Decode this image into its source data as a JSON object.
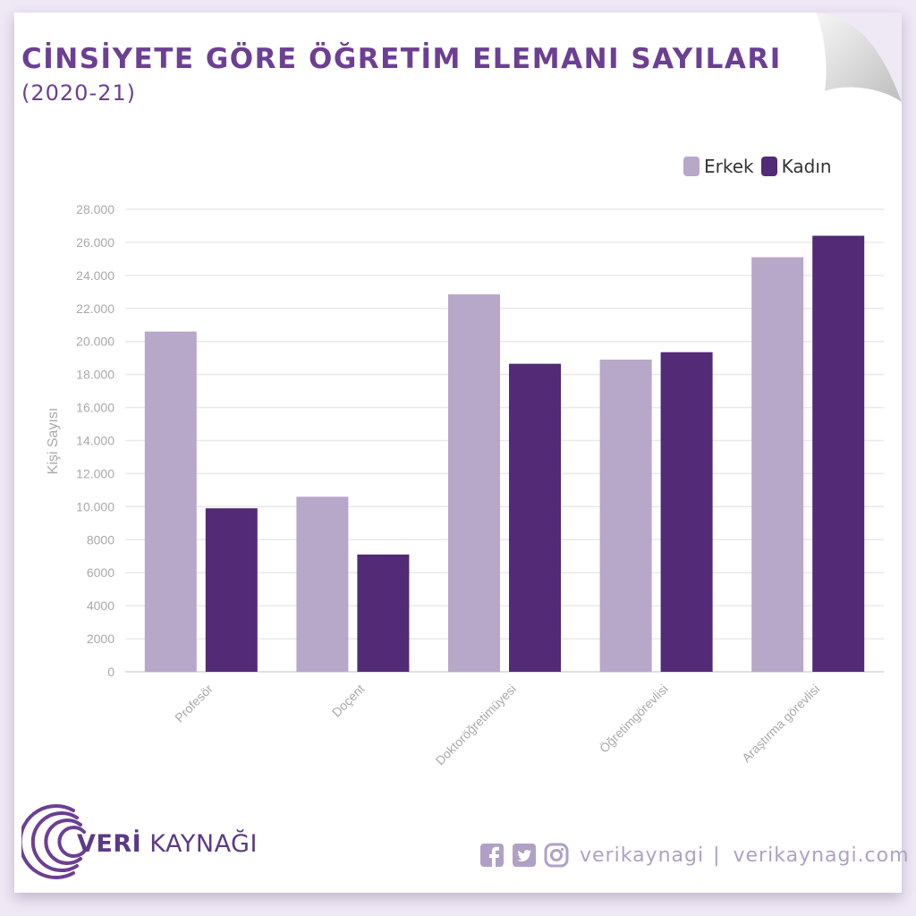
{
  "header": {
    "title": "CİNSİYETE GÖRE ÖĞRETİM ELEMANI SAYILARI",
    "subtitle": "(2020-21)"
  },
  "chart_data": {
    "type": "bar",
    "title": "CİNSİYETE GÖRE ÖĞRETİM ELEMANI SAYILARI",
    "subtitle": "(2020-21)",
    "xlabel": "",
    "ylabel": "Kişi Sayısı",
    "categories": [
      "Profesör",
      "Doçent",
      "Doktoröğretimüyesi",
      "Öğretimgörevlisi",
      "Araştırma görevlisi"
    ],
    "series": [
      {
        "name": "Erkek",
        "color": "#b7a7c9",
        "values": [
          20600,
          10600,
          22850,
          18900,
          25100
        ]
      },
      {
        "name": "Kadın",
        "color": "#522a76",
        "values": [
          9900,
          7100,
          18650,
          19350,
          26400
        ]
      }
    ],
    "ylim": [
      0,
      28000
    ],
    "yticks": [
      0,
      2000,
      4000,
      6000,
      8000,
      10000,
      12000,
      14000,
      16000,
      18000,
      20000,
      22000,
      24000,
      26000,
      28000
    ],
    "ytick_labels": [
      "0",
      "2000",
      "4000",
      "6000",
      "8000",
      "10.000",
      "12.000",
      "14.000",
      "16.000",
      "18.000",
      "20.000",
      "22.000",
      "24.000",
      "26.000",
      "28.000"
    ],
    "grid": true,
    "legend_position": "top-right"
  },
  "legend": {
    "items": [
      {
        "label": "Erkek",
        "color": "#b7a7c9"
      },
      {
        "label": "Kadın",
        "color": "#522a76"
      }
    ]
  },
  "footer": {
    "brand_bold": "VERİ",
    "brand_rest": " KAYNAĞI",
    "handle": "verikaynagi",
    "separator": "|",
    "website": "verikaynagi.com",
    "icons": [
      "facebook-icon",
      "twitter-icon",
      "instagram-icon"
    ]
  }
}
